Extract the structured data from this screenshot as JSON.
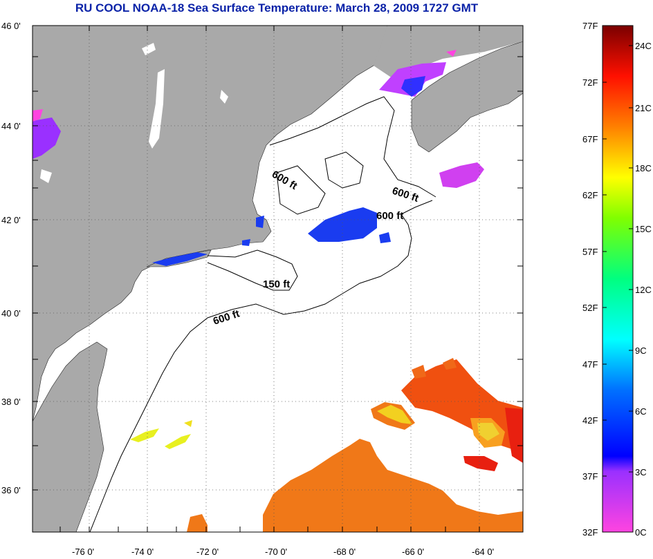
{
  "title": "RU COOL  NOAA-18  Sea Surface Temperature:  March 28, 2009 1727 GMT",
  "map": {
    "lat_labels": [
      "46 0'",
      "44 0'",
      "42 0'",
      "40 0'",
      "38 0'",
      "36 0'"
    ],
    "lon_labels": [
      "-76 0'",
      "-74 0'",
      "-72 0'",
      "-70 0'",
      "-68 0'",
      "-66 0'",
      "-64 0'"
    ],
    "contour_labels": [
      "600 ft",
      "600 ft",
      "600 ft",
      "150 ft",
      "600 ft"
    ],
    "colors": {
      "land": "#a9a9a9",
      "ocean": "#ffffff",
      "title": "#0b23a8"
    }
  },
  "colorbar": {
    "f_labels": [
      "77F",
      "72F",
      "67F",
      "62F",
      "57F",
      "52F",
      "47F",
      "42F",
      "37F",
      "32F"
    ],
    "c_labels": [
      "24C",
      "21C",
      "18C",
      "15C",
      "12C",
      "9C",
      "6C",
      "3C",
      "0C"
    ],
    "f_range": [
      32,
      77
    ]
  }
}
